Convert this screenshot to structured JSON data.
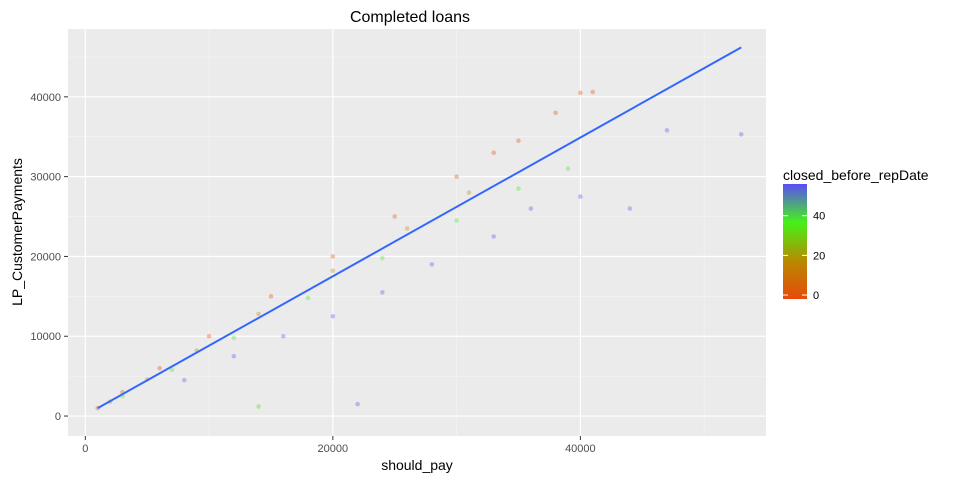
{
  "chart_data": {
    "type": "scatter",
    "title": "Completed loans",
    "xlabel": "should_pay",
    "ylabel": "LP_CustomerPayments",
    "xlim": [
      -1400,
      55000
    ],
    "ylim": [
      -2500,
      48500
    ],
    "x_ticks": [
      0,
      20000,
      40000
    ],
    "x_tick_labels": [
      "0",
      "20000",
      "40000"
    ],
    "y_ticks": [
      0,
      10000,
      20000,
      30000,
      40000
    ],
    "y_tick_labels": [
      "0",
      "10000",
      "20000",
      "30000",
      "40000"
    ],
    "grid": true,
    "legend": {
      "title": "closed_before_repDate",
      "position": "right",
      "type": "colorbar",
      "range": [
        -2,
        56
      ],
      "breaks": [
        0,
        20,
        40
      ],
      "break_labels": [
        "0",
        "20",
        "40"
      ],
      "colors": [
        "#e8490a",
        "#b88a00",
        "#44f21a",
        "#5b4cf5"
      ]
    },
    "series": [
      {
        "values": [
          {
            "x": 1000,
            "y": 1000,
            "c": 0
          },
          {
            "x": 3000,
            "y": 3000,
            "c": 0
          },
          {
            "x": 6000,
            "y": 6000,
            "c": 0
          },
          {
            "x": 10000,
            "y": 10000,
            "c": 0
          },
          {
            "x": 15000,
            "y": 15000,
            "c": 0
          },
          {
            "x": 20000,
            "y": 20000,
            "c": 0
          },
          {
            "x": 25000,
            "y": 25000,
            "c": 0
          },
          {
            "x": 30000,
            "y": 30000,
            "c": 0
          },
          {
            "x": 33000,
            "y": 33000,
            "c": 0
          },
          {
            "x": 35000,
            "y": 34500,
            "c": 0
          },
          {
            "x": 38000,
            "y": 38000,
            "c": 0
          },
          {
            "x": 40000,
            "y": 40500,
            "c": 0
          },
          {
            "x": 41000,
            "y": 40600,
            "c": 0
          },
          {
            "x": 2000,
            "y": 1800,
            "c": 18
          },
          {
            "x": 5000,
            "y": 4600,
            "c": 18
          },
          {
            "x": 9000,
            "y": 8200,
            "c": 18
          },
          {
            "x": 14000,
            "y": 12800,
            "c": 18
          },
          {
            "x": 20000,
            "y": 18200,
            "c": 18
          },
          {
            "x": 26000,
            "y": 23500,
            "c": 18
          },
          {
            "x": 31000,
            "y": 28000,
            "c": 18
          },
          {
            "x": 3000,
            "y": 2500,
            "c": 38
          },
          {
            "x": 7000,
            "y": 5800,
            "c": 38
          },
          {
            "x": 12000,
            "y": 9800,
            "c": 38
          },
          {
            "x": 18000,
            "y": 14800,
            "c": 38
          },
          {
            "x": 24000,
            "y": 19800,
            "c": 38
          },
          {
            "x": 30000,
            "y": 24500,
            "c": 38
          },
          {
            "x": 35000,
            "y": 28500,
            "c": 38
          },
          {
            "x": 39000,
            "y": 31000,
            "c": 38
          },
          {
            "x": 8000,
            "y": 4500,
            "c": 55
          },
          {
            "x": 12000,
            "y": 7500,
            "c": 55
          },
          {
            "x": 16000,
            "y": 10000,
            "c": 55
          },
          {
            "x": 20000,
            "y": 12500,
            "c": 55
          },
          {
            "x": 24000,
            "y": 15500,
            "c": 55
          },
          {
            "x": 28000,
            "y": 19000,
            "c": 55
          },
          {
            "x": 33000,
            "y": 22500,
            "c": 55
          },
          {
            "x": 36000,
            "y": 26000,
            "c": 55
          },
          {
            "x": 40000,
            "y": 27500,
            "c": 55
          },
          {
            "x": 44000,
            "y": 26000,
            "c": 55
          },
          {
            "x": 47000,
            "y": 35800,
            "c": 55
          },
          {
            "x": 53000,
            "y": 35300,
            "c": 55
          },
          {
            "x": 22000,
            "y": 1500,
            "c": 55
          },
          {
            "x": 14000,
            "y": 1200,
            "c": 30
          }
        ]
      },
      {
        "type": "line",
        "values": [
          {
            "x": 1000,
            "y": 1000
          },
          {
            "x": 53000,
            "y": 46200
          }
        ]
      }
    ]
  }
}
